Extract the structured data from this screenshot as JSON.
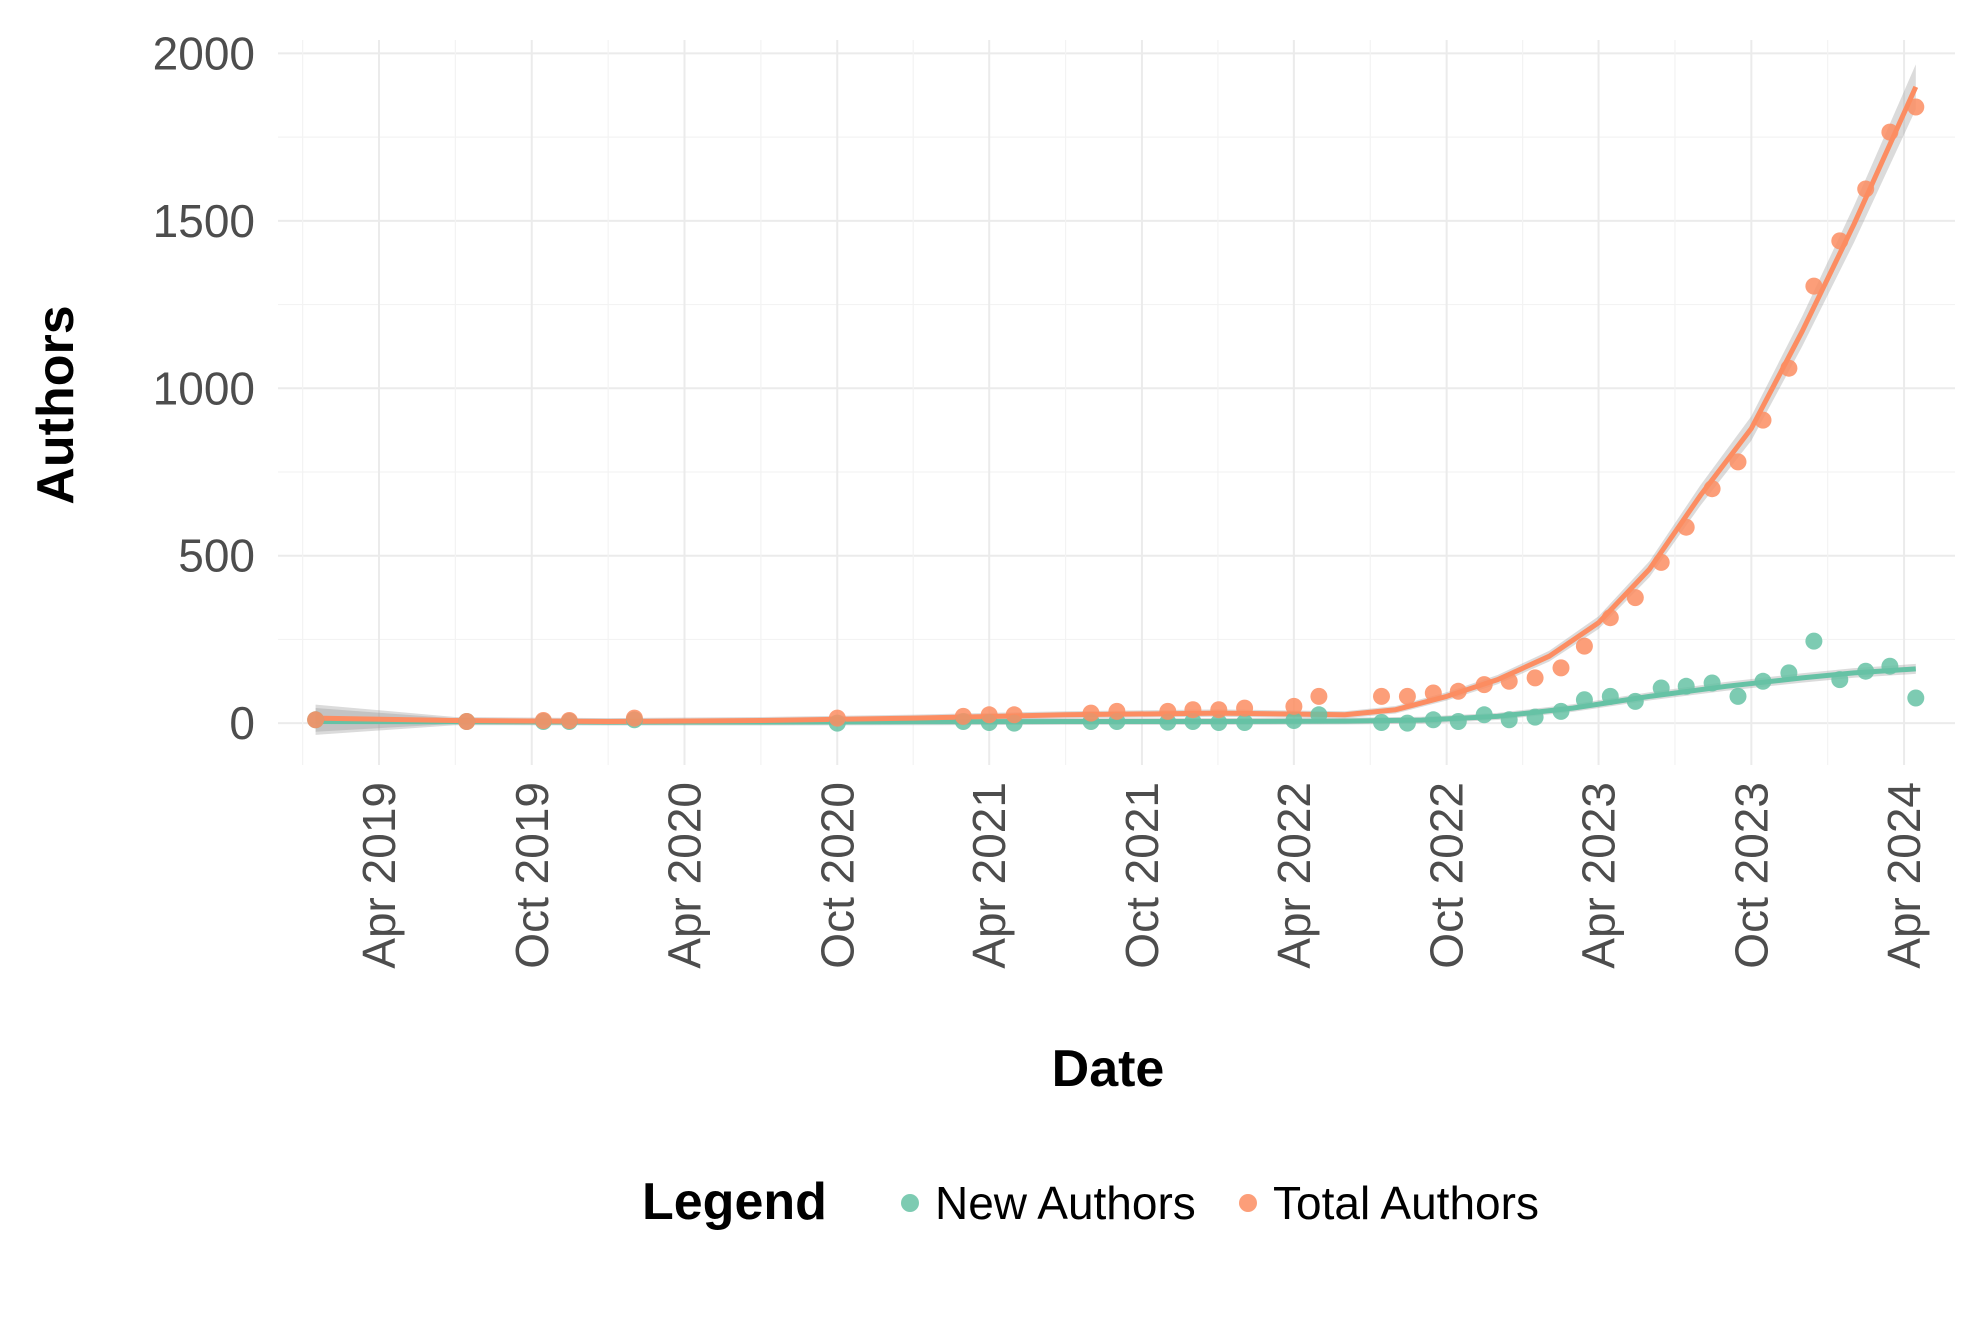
{
  "chart_data": {
    "type": "scatter",
    "xlabel": "Date",
    "ylabel": "Authors",
    "x_ticks": [
      {
        "date": "2019-04-01",
        "label": "Apr 2019"
      },
      {
        "date": "2019-10-01",
        "label": "Oct 2019"
      },
      {
        "date": "2020-04-01",
        "label": "Apr 2020"
      },
      {
        "date": "2020-10-01",
        "label": "Oct 2020"
      },
      {
        "date": "2021-04-01",
        "label": "Apr 2021"
      },
      {
        "date": "2021-10-01",
        "label": "Oct 2021"
      },
      {
        "date": "2022-04-01",
        "label": "Apr 2022"
      },
      {
        "date": "2022-10-01",
        "label": "Oct 2022"
      },
      {
        "date": "2023-04-01",
        "label": "Apr 2023"
      },
      {
        "date": "2023-10-01",
        "label": "Oct 2023"
      },
      {
        "date": "2024-04-01",
        "label": "Apr 2024"
      }
    ],
    "y_ticks": [
      0,
      500,
      1000,
      1500,
      2000
    ],
    "xlim": [
      "2018-12-01",
      "2024-06-01"
    ],
    "ylim": [
      -125,
      2040
    ],
    "grid": true,
    "legend": {
      "title": "Legend",
      "position": "bottom"
    },
    "smoothing": "loess curve with grey confidence band per series",
    "series": [
      {
        "name": "New Authors",
        "color": "#66c2a5",
        "points": [
          [
            "2019-01-15",
            10
          ],
          [
            "2019-07-15",
            5
          ],
          [
            "2019-10-15",
            5
          ],
          [
            "2019-11-15",
            5
          ],
          [
            "2020-02-01",
            10
          ],
          [
            "2020-10-01",
            0
          ],
          [
            "2021-03-01",
            5
          ],
          [
            "2021-04-01",
            2
          ],
          [
            "2021-05-01",
            0
          ],
          [
            "2021-08-01",
            5
          ],
          [
            "2021-09-01",
            5
          ],
          [
            "2021-11-01",
            3
          ],
          [
            "2021-12-01",
            5
          ],
          [
            "2022-01-01",
            2
          ],
          [
            "2022-02-01",
            2
          ],
          [
            "2022-04-01",
            8
          ],
          [
            "2022-05-01",
            25
          ],
          [
            "2022-07-15",
            2
          ],
          [
            "2022-08-15",
            0
          ],
          [
            "2022-09-15",
            10
          ],
          [
            "2022-10-15",
            5
          ],
          [
            "2022-11-15",
            25
          ],
          [
            "2022-12-15",
            10
          ],
          [
            "2023-01-15",
            18
          ],
          [
            "2023-02-15",
            35
          ],
          [
            "2023-03-15",
            70
          ],
          [
            "2023-04-15",
            80
          ],
          [
            "2023-05-15",
            65
          ],
          [
            "2023-06-15",
            105
          ],
          [
            "2023-07-15",
            110
          ],
          [
            "2023-08-15",
            120
          ],
          [
            "2023-09-15",
            80
          ],
          [
            "2023-10-15",
            125
          ],
          [
            "2023-11-15",
            150
          ],
          [
            "2023-12-15",
            245
          ],
          [
            "2024-01-15",
            130
          ],
          [
            "2024-02-15",
            155
          ],
          [
            "2024-03-15",
            170
          ],
          [
            "2024-04-15",
            75
          ]
        ],
        "trend": [
          [
            "2019-01-15",
            5
          ],
          [
            "2019-07-01",
            4
          ],
          [
            "2020-01-01",
            3
          ],
          [
            "2020-07-01",
            3
          ],
          [
            "2021-01-01",
            4
          ],
          [
            "2021-07-01",
            5
          ],
          [
            "2022-01-01",
            5
          ],
          [
            "2022-06-01",
            6
          ],
          [
            "2022-09-01",
            9
          ],
          [
            "2022-12-01",
            20
          ],
          [
            "2023-03-01",
            45
          ],
          [
            "2023-06-01",
            80
          ],
          [
            "2023-09-01",
            110
          ],
          [
            "2023-12-01",
            135
          ],
          [
            "2024-02-01",
            150
          ],
          [
            "2024-04-15",
            162
          ]
        ]
      },
      {
        "name": "Total Authors",
        "color": "#fc8d62",
        "points": [
          [
            "2019-01-15",
            10
          ],
          [
            "2019-07-15",
            5
          ],
          [
            "2019-10-15",
            8
          ],
          [
            "2019-11-15",
            8
          ],
          [
            "2020-02-01",
            15
          ],
          [
            "2020-10-01",
            15
          ],
          [
            "2021-03-01",
            20
          ],
          [
            "2021-04-01",
            25
          ],
          [
            "2021-05-01",
            25
          ],
          [
            "2021-08-01",
            30
          ],
          [
            "2021-09-01",
            35
          ],
          [
            "2021-11-01",
            35
          ],
          [
            "2021-12-01",
            40
          ],
          [
            "2022-01-01",
            40
          ],
          [
            "2022-02-01",
            45
          ],
          [
            "2022-04-01",
            50
          ],
          [
            "2022-05-01",
            80
          ],
          [
            "2022-07-15",
            80
          ],
          [
            "2022-08-15",
            80
          ],
          [
            "2022-09-15",
            90
          ],
          [
            "2022-10-15",
            95
          ],
          [
            "2022-11-15",
            115
          ],
          [
            "2022-12-15",
            125
          ],
          [
            "2023-01-15",
            135
          ],
          [
            "2023-02-15",
            165
          ],
          [
            "2023-03-15",
            230
          ],
          [
            "2023-04-15",
            315
          ],
          [
            "2023-05-15",
            375
          ],
          [
            "2023-06-15",
            480
          ],
          [
            "2023-07-15",
            585
          ],
          [
            "2023-08-15",
            700
          ],
          [
            "2023-09-15",
            780
          ],
          [
            "2023-10-15",
            905
          ],
          [
            "2023-11-15",
            1060
          ],
          [
            "2023-12-15",
            1305
          ],
          [
            "2024-01-15",
            1440
          ],
          [
            "2024-02-15",
            1595
          ],
          [
            "2024-03-15",
            1765
          ],
          [
            "2024-04-15",
            1840
          ]
        ],
        "trend": [
          [
            "2019-01-15",
            15
          ],
          [
            "2019-07-01",
            8
          ],
          [
            "2020-01-01",
            5
          ],
          [
            "2020-07-01",
            8
          ],
          [
            "2021-01-01",
            15
          ],
          [
            "2021-07-01",
            25
          ],
          [
            "2022-01-01",
            30
          ],
          [
            "2022-06-01",
            25
          ],
          [
            "2022-08-01",
            40
          ],
          [
            "2022-10-01",
            80
          ],
          [
            "2022-12-01",
            130
          ],
          [
            "2023-02-01",
            200
          ],
          [
            "2023-04-01",
            300
          ],
          [
            "2023-06-01",
            460
          ],
          [
            "2023-08-01",
            680
          ],
          [
            "2023-10-01",
            880
          ],
          [
            "2023-12-01",
            1170
          ],
          [
            "2024-02-01",
            1490
          ],
          [
            "2024-04-15",
            1900
          ]
        ]
      }
    ]
  }
}
